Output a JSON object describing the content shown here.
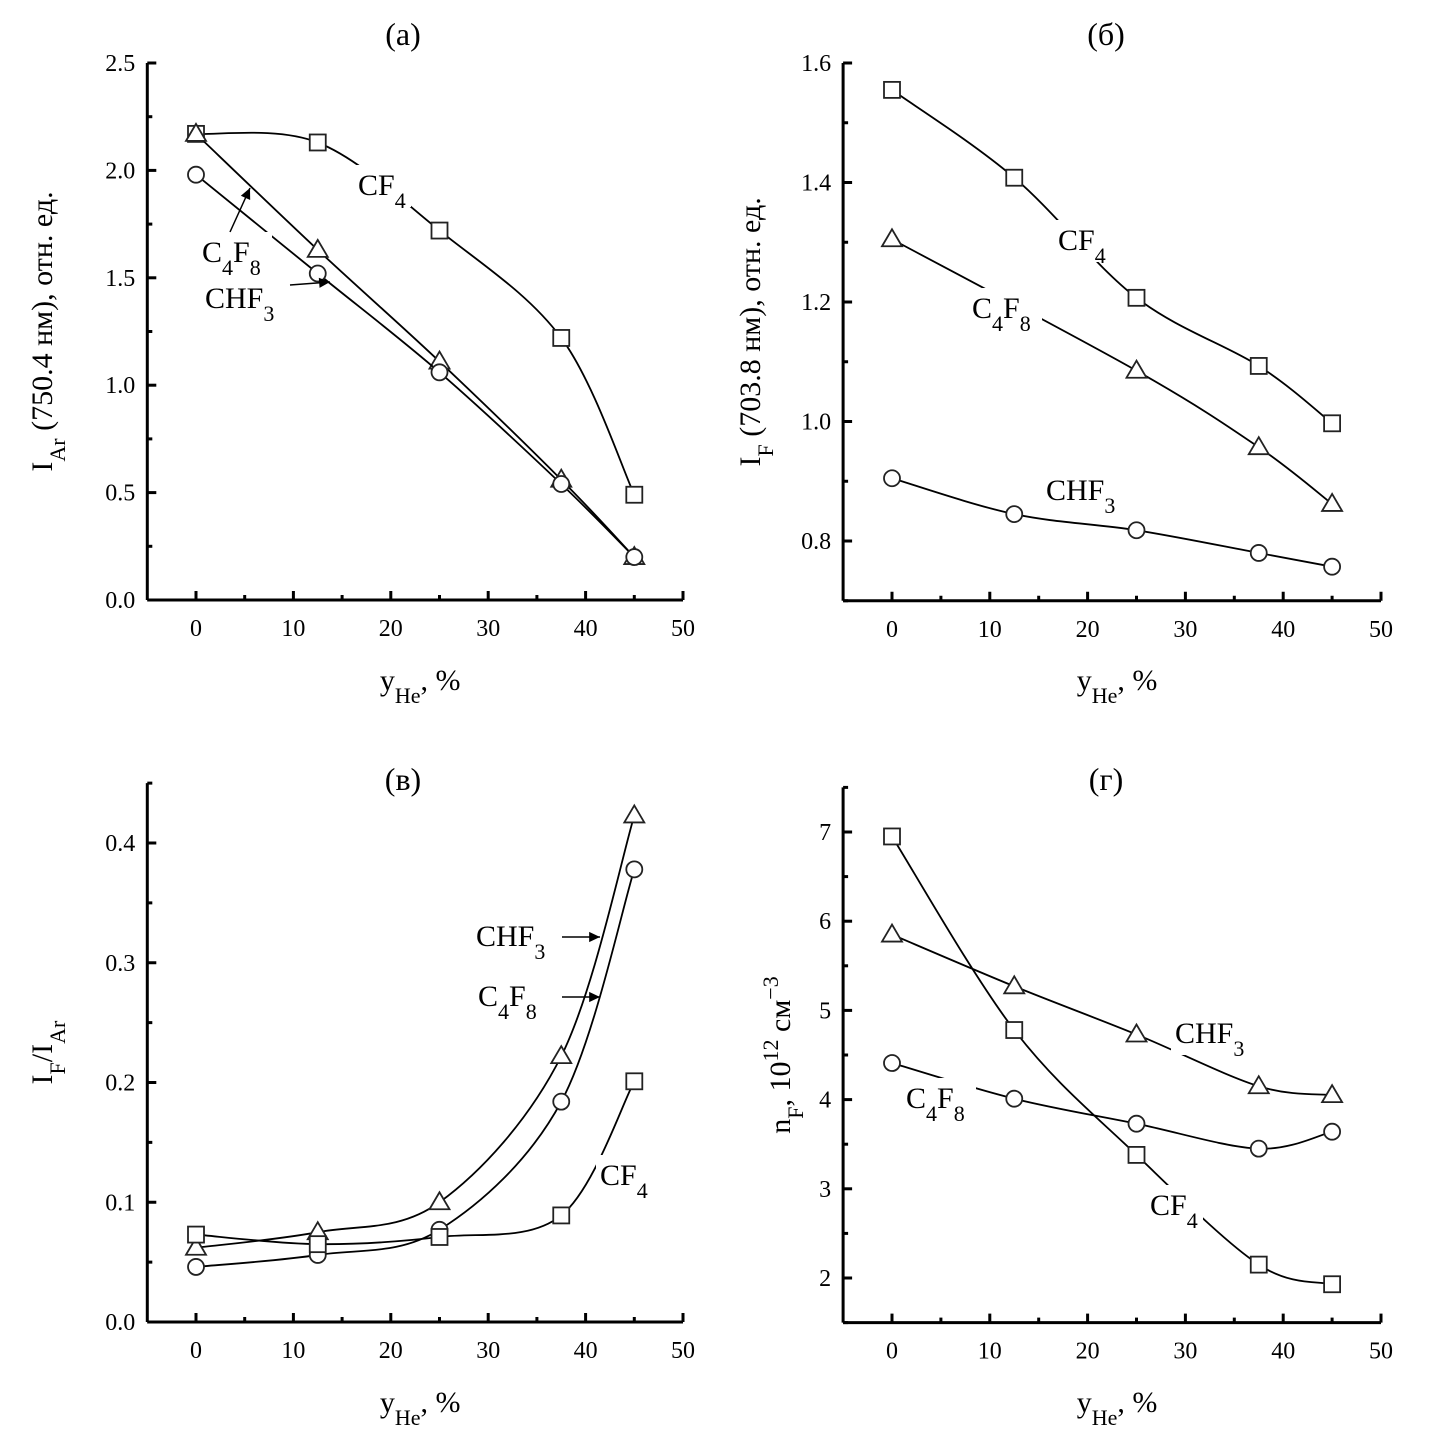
{
  "chart_data": [
    {
      "type": "scatter",
      "title": "(а)",
      "xlabel": {
        "main": "y",
        "sub": "He",
        "rest": ", %"
      },
      "ylabel": {
        "main": "I",
        "sub": "Ar",
        "rest": " (750.4 нм), отн. ед."
      },
      "xlim": [
        -5,
        50
      ],
      "ylim": [
        0,
        2.5
      ],
      "xticks": [
        0,
        10,
        20,
        30,
        40,
        50
      ],
      "yticks": [
        0.0,
        0.5,
        1.0,
        1.5,
        2.0,
        2.5
      ],
      "ytick_decimals": 1,
      "grid": false,
      "series": [
        {
          "name": "CF4",
          "marker": "square",
          "x": [
            0,
            12.5,
            25,
            37.5,
            45
          ],
          "y": [
            2.17,
            2.13,
            1.72,
            1.22,
            0.49
          ]
        },
        {
          "name": "C4F8",
          "marker": "triangle",
          "x": [
            0,
            12.5,
            25,
            37.5,
            45
          ],
          "y": [
            2.17,
            1.63,
            1.11,
            0.56,
            0.2
          ]
        },
        {
          "name": "CHF3",
          "marker": "circle",
          "x": [
            0,
            12.5,
            25,
            37.5,
            45
          ],
          "y": [
            1.98,
            1.52,
            1.06,
            0.54,
            0.2
          ]
        }
      ]
    },
    {
      "type": "scatter",
      "title": "(б)",
      "xlabel": {
        "main": "y",
        "sub": "He",
        "rest": ", %"
      },
      "ylabel": {
        "main": "I",
        "sub": "F",
        "rest": " (703.8 нм), отн. ед."
      },
      "xlim": [
        -5,
        50
      ],
      "ylim": [
        0.7,
        1.6
      ],
      "xticks": [
        0,
        10,
        20,
        30,
        40,
        50
      ],
      "yticks": [
        0.8,
        1.0,
        1.2,
        1.4,
        1.6
      ],
      "ytick_decimals": 1,
      "grid": false,
      "series": [
        {
          "name": "CF4",
          "marker": "square",
          "x": [
            0,
            12.5,
            25,
            37.5,
            45
          ],
          "y": [
            1.555,
            1.408,
            1.207,
            1.093,
            0.997
          ]
        },
        {
          "name": "C4F8",
          "marker": "triangle",
          "x": [
            0,
            25,
            37.5,
            45
          ],
          "y": [
            1.305,
            1.085,
            0.957,
            0.862
          ]
        },
        {
          "name": "CHF3",
          "marker": "circle",
          "x": [
            0,
            12.5,
            25,
            37.5,
            45
          ],
          "y": [
            0.905,
            0.845,
            0.818,
            0.78,
            0.757
          ]
        }
      ]
    },
    {
      "type": "scatter",
      "title": "(в)",
      "xlabel": {
        "main": "y",
        "sub": "He",
        "rest": ", %"
      },
      "ylabel": {
        "main": "I",
        "sub": "F",
        "rest": "/I",
        "sub2": "Ar"
      },
      "xlim": [
        -5,
        50
      ],
      "ylim": [
        0,
        0.45
      ],
      "xticks": [
        0,
        10,
        20,
        30,
        40,
        50
      ],
      "yticks": [
        0.0,
        0.1,
        0.2,
        0.3,
        0.4
      ],
      "ytick_decimals": 1,
      "grid": false,
      "series": [
        {
          "name": "C4F8",
          "marker": "triangle",
          "x": [
            0,
            12.5,
            25,
            37.5,
            45
          ],
          "y": [
            0.062,
            0.075,
            0.1,
            0.222,
            0.423
          ]
        },
        {
          "name": "CHF3",
          "marker": "circle",
          "x": [
            0,
            12.5,
            25,
            37.5,
            45
          ],
          "y": [
            0.046,
            0.056,
            0.077,
            0.184,
            0.378
          ]
        },
        {
          "name": "CF4",
          "marker": "square",
          "x": [
            0,
            12.5,
            25,
            37.5,
            45
          ],
          "y": [
            0.073,
            0.065,
            0.071,
            0.089,
            0.201
          ]
        }
      ]
    },
    {
      "type": "scatter",
      "title": "(г)",
      "xlabel": {
        "main": "y",
        "sub": "He",
        "rest": ", %"
      },
      "ylabel": {
        "main": "n",
        "sub": "F",
        "rest": ", 10",
        "sup": "12",
        "rest2": " см",
        "sup2": "−3"
      },
      "xlim": [
        -5,
        50
      ],
      "ylim": [
        1.5,
        7.5
      ],
      "xticks": [
        0,
        10,
        20,
        30,
        40,
        50
      ],
      "yticks": [
        2,
        3,
        4,
        5,
        6,
        7
      ],
      "ytick_decimals": 0,
      "grid": false,
      "series": [
        {
          "name": "CF4",
          "marker": "square",
          "x": [
            0,
            12.5,
            25,
            37.5,
            45
          ],
          "y": [
            6.95,
            4.78,
            3.38,
            2.15,
            1.93
          ]
        },
        {
          "name": "CHF3",
          "marker": "triangle",
          "x": [
            0,
            12.5,
            25,
            37.5,
            45
          ],
          "y": [
            5.85,
            5.27,
            4.73,
            4.15,
            4.05
          ]
        },
        {
          "name": "C4F8",
          "marker": "circle",
          "x": [
            0,
            12.5,
            25,
            37.5,
            45
          ],
          "y": [
            4.41,
            4.01,
            3.73,
            3.45,
            3.64
          ]
        }
      ]
    }
  ]
}
